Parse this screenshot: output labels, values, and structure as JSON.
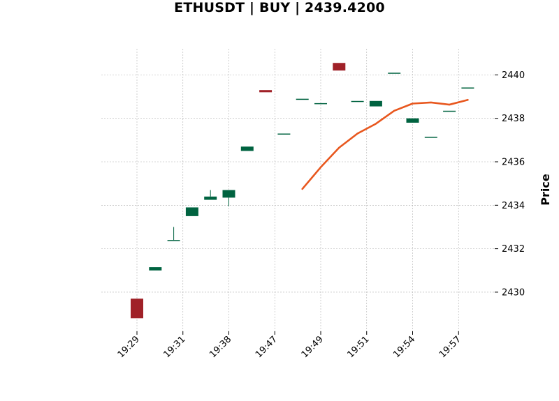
{
  "chart_data": {
    "type": "candlestick",
    "title": "ETHUSDT | BUY | 2439.4200",
    "ylabel": "Price",
    "xlabel": "",
    "ylim": [
      2428.2,
      2441.2
    ],
    "y_ticks": [
      2430,
      2432,
      2434,
      2436,
      2438,
      2440
    ],
    "x_tick_labels": [
      "19:29",
      "19:31",
      "19:38",
      "19:47",
      "19:49",
      "19:51",
      "19:54",
      "19:57"
    ],
    "x_tick_index": [
      0,
      2.5,
      5,
      7.5,
      10,
      12.5,
      15,
      17.5
    ],
    "grid": true,
    "colors": {
      "up": "#006340",
      "down": "#a02128",
      "ma": "#e8571e",
      "grid": "#b0b0b0"
    },
    "candles": [
      {
        "o": 2429.7,
        "h": 2429.7,
        "l": 2428.8,
        "c": 2428.8
      },
      {
        "o": 2431.0,
        "h": 2431.15,
        "l": 2431.0,
        "c": 2431.15
      },
      {
        "o": 2432.4,
        "h": 2433.0,
        "l": 2432.4,
        "c": 2432.4
      },
      {
        "o": 2433.5,
        "h": 2433.9,
        "l": 2433.5,
        "c": 2433.9
      },
      {
        "o": 2434.25,
        "h": 2434.7,
        "l": 2434.25,
        "c": 2434.4
      },
      {
        "o": 2434.35,
        "h": 2434.7,
        "l": 2433.95,
        "c": 2434.7
      },
      {
        "o": 2436.5,
        "h": 2436.7,
        "l": 2436.5,
        "c": 2436.7
      },
      {
        "o": 2439.3,
        "h": 2439.3,
        "l": 2439.2,
        "c": 2439.2
      },
      {
        "o": 2437.3,
        "h": 2437.3,
        "l": 2437.3,
        "c": 2437.3
      },
      {
        "o": 2438.9,
        "h": 2438.9,
        "l": 2438.9,
        "c": 2438.9
      },
      {
        "o": 2438.7,
        "h": 2438.7,
        "l": 2438.7,
        "c": 2438.7
      },
      {
        "o": 2440.55,
        "h": 2440.55,
        "l": 2440.2,
        "c": 2440.2
      },
      {
        "o": 2438.8,
        "h": 2438.8,
        "l": 2438.8,
        "c": 2438.8
      },
      {
        "o": 2438.55,
        "h": 2438.8,
        "l": 2438.55,
        "c": 2438.8
      },
      {
        "o": 2440.1,
        "h": 2440.1,
        "l": 2440.1,
        "c": 2440.1
      },
      {
        "o": 2437.8,
        "h": 2438.0,
        "l": 2437.8,
        "c": 2438.0
      },
      {
        "o": 2437.15,
        "h": 2437.15,
        "l": 2437.15,
        "c": 2437.15
      },
      {
        "o": 2438.35,
        "h": 2438.35,
        "l": 2438.35,
        "c": 2438.35
      },
      {
        "o": 2439.42,
        "h": 2439.42,
        "l": 2439.42,
        "c": 2439.42
      }
    ],
    "ma_line": [
      {
        "i": 9,
        "v": 2434.75
      },
      {
        "i": 10,
        "v": 2435.75
      },
      {
        "i": 11,
        "v": 2436.65
      },
      {
        "i": 12,
        "v": 2437.3
      },
      {
        "i": 13,
        "v": 2437.75
      },
      {
        "i": 14,
        "v": 2438.35
      },
      {
        "i": 15,
        "v": 2438.68
      },
      {
        "i": 16,
        "v": 2438.73
      },
      {
        "i": 17,
        "v": 2438.63
      },
      {
        "i": 18,
        "v": 2438.85
      }
    ]
  }
}
